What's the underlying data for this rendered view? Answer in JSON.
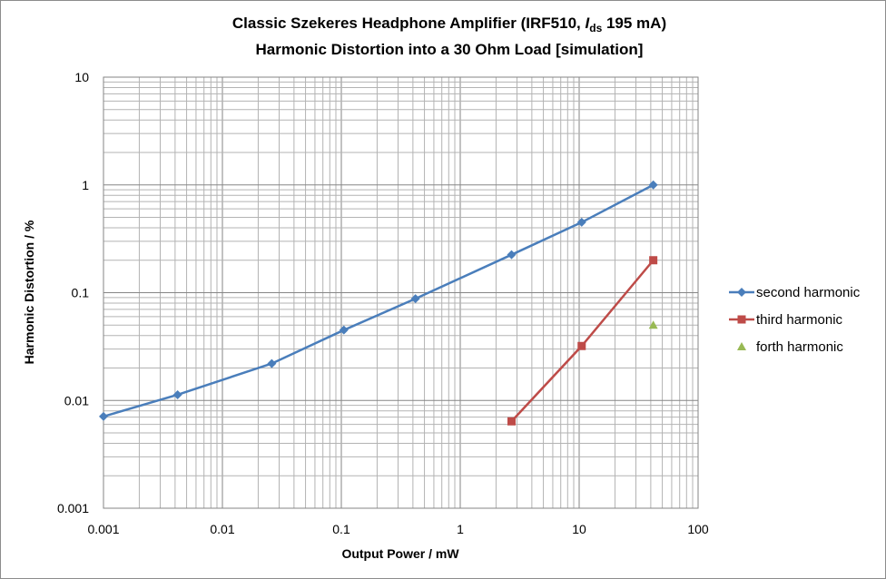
{
  "chart_data": {
    "type": "line",
    "title_line1_pre": "Classic Szekeres Headphone Amplifier (IRF510, ",
    "title_line1_var": "I",
    "title_line1_sub": "ds",
    "title_line1_post": " 195 mA)",
    "title_line2": "Harmonic Distortion into a 30 Ohm Load [simulation]",
    "xlabel": "Output Power / mW",
    "ylabel": "Harmonic Distortion / %",
    "xscale": "log",
    "yscale": "log",
    "xlim": [
      0.001,
      100
    ],
    "ylim": [
      0.001,
      10
    ],
    "x_ticks": [
      "0.001",
      "0.01",
      "0.1",
      "1",
      "10",
      "100"
    ],
    "y_ticks": [
      "0.001",
      "0.01",
      "0.1",
      "1",
      "10"
    ],
    "grid": true,
    "legend_position": "right",
    "series": [
      {
        "name": "second harmonic",
        "color": "#4a7ebb",
        "marker": "diamond",
        "x": [
          0.001,
          0.0042,
          0.026,
          0.105,
          0.42,
          2.7,
          10.5,
          42
        ],
        "y": [
          0.0071,
          0.0113,
          0.022,
          0.045,
          0.088,
          0.225,
          0.45,
          1.0
        ]
      },
      {
        "name": "third harmonic",
        "color": "#be4b48",
        "marker": "square",
        "x": [
          2.7,
          10.5,
          42
        ],
        "y": [
          0.0064,
          0.032,
          0.2
        ]
      },
      {
        "name": "forth harmonic",
        "color": "#98b954",
        "marker": "triangle",
        "x": [
          42
        ],
        "y": [
          0.05
        ]
      }
    ]
  }
}
